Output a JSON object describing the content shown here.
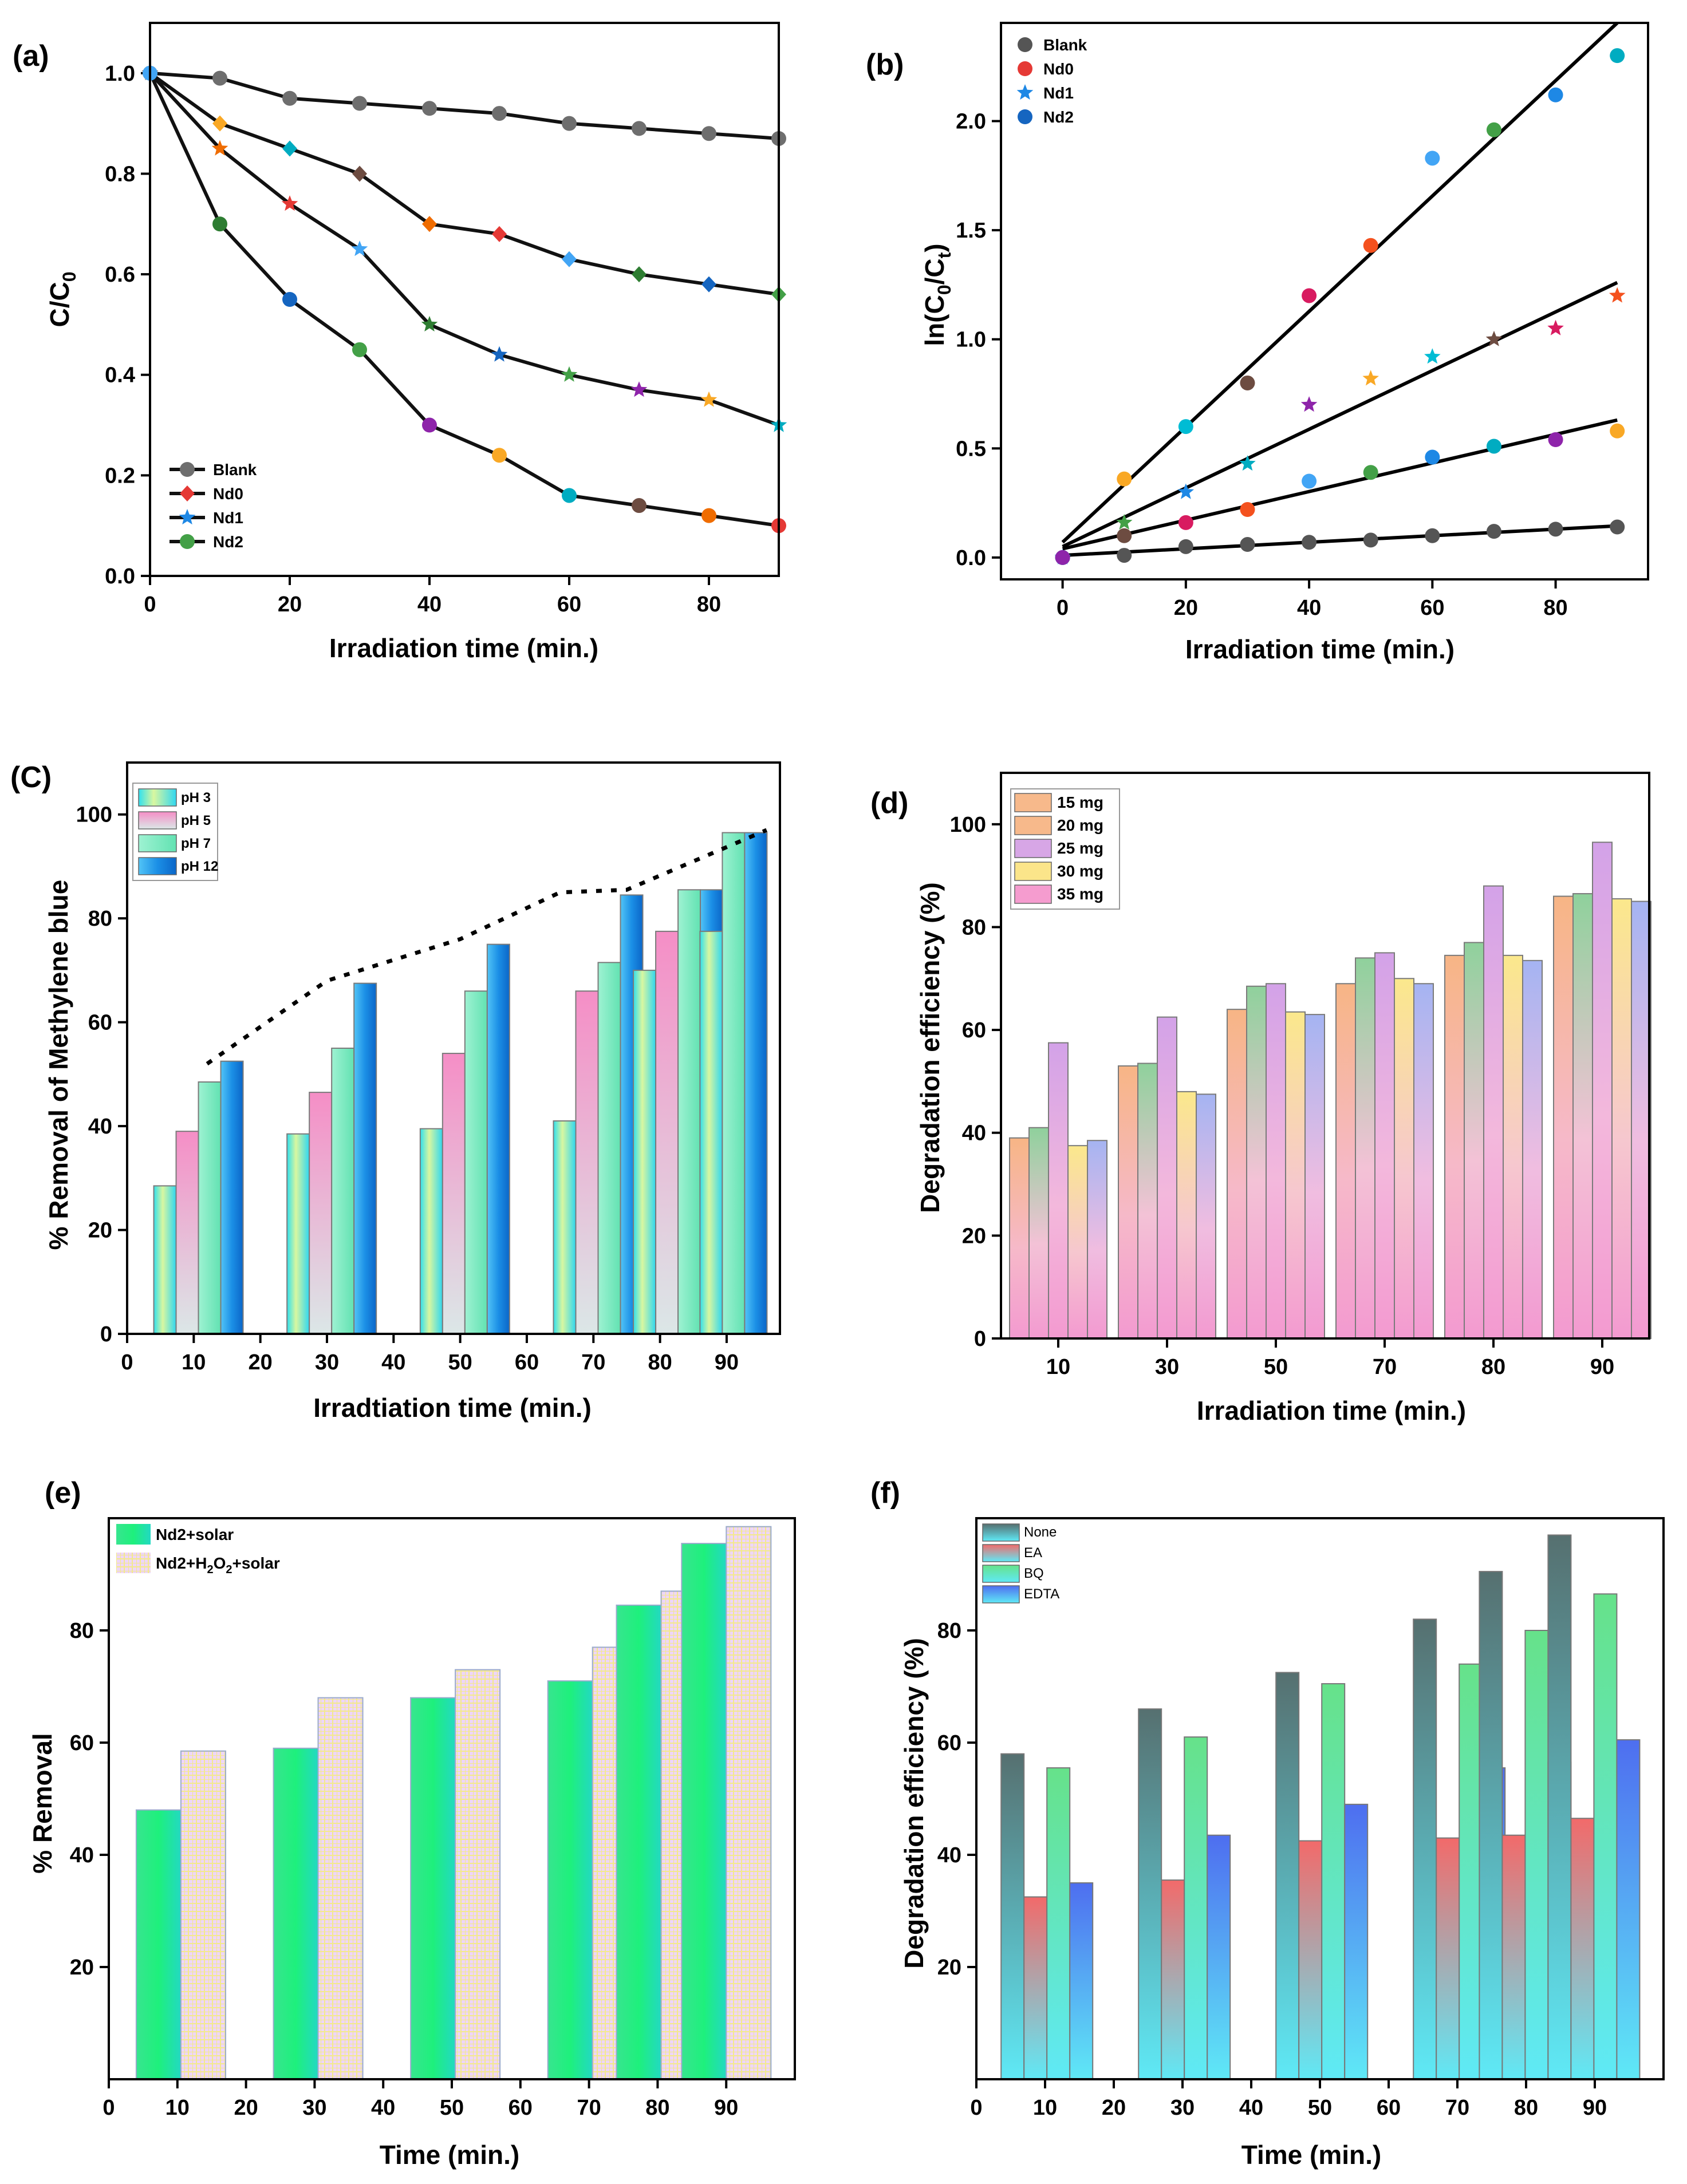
{
  "chart_data": [
    {
      "panel": "(a)",
      "type": "line",
      "title": "",
      "xlabel": "Irradiation time (min.)",
      "ylabel": "C/C0",
      "ylabel_main": "C/C",
      "ylabel_sub": "0",
      "xlim": [
        0,
        90
      ],
      "ylim": [
        0,
        1.1
      ],
      "xticks": [
        0,
        20,
        40,
        60,
        80
      ],
      "yticks": [
        0.0,
        0.2,
        0.4,
        0.6,
        0.8,
        1.0
      ],
      "xtick_labels": [
        "0",
        "20",
        "40",
        "60",
        "80"
      ],
      "ytick_labels": [
        "0.0",
        "0.2",
        "0.4",
        "0.6",
        "0.8",
        "1.0"
      ],
      "x": [
        0,
        10,
        20,
        30,
        40,
        50,
        60,
        70,
        80,
        90
      ],
      "series": [
        {
          "name": "Blank",
          "values": [
            1.0,
            0.99,
            0.95,
            0.94,
            0.93,
            0.92,
            0.9,
            0.89,
            0.88,
            0.87
          ]
        },
        {
          "name": "Nd0",
          "values": [
            1.0,
            0.9,
            0.85,
            0.8,
            0.7,
            0.68,
            0.63,
            0.6,
            0.58,
            0.56
          ]
        },
        {
          "name": "Nd1",
          "values": [
            1.0,
            0.85,
            0.74,
            0.65,
            0.5,
            0.44,
            0.4,
            0.37,
            0.35,
            0.3
          ]
        },
        {
          "name": "Nd2",
          "values": [
            1.0,
            0.7,
            0.55,
            0.45,
            0.3,
            0.24,
            0.16,
            0.14,
            0.12,
            0.1
          ]
        }
      ],
      "point_colors": [
        "#2e7d32",
        "#1565c0",
        "#43a047",
        "#8e24aa",
        "#f9a825",
        "#00acc1",
        "#6d4c41",
        "#ef6c00",
        "#e53935",
        "#42a5f5"
      ],
      "legend": [
        "Blank",
        "Nd0",
        "Nd1",
        "Nd2"
      ],
      "legend_position": "bottom-left"
    },
    {
      "panel": "(b)",
      "type": "scatter",
      "title": "",
      "xlabel": "Irradiation time (min.)",
      "ylabel": "ln(C0/Ct)",
      "ylabel_parts": [
        "ln(C",
        "0",
        "/C",
        "t",
        ")"
      ],
      "xlim": [
        -10,
        95
      ],
      "ylim": [
        -0.1,
        2.45
      ],
      "xticks": [
        0,
        20,
        40,
        60,
        80
      ],
      "yticks": [
        0.0,
        0.5,
        1.0,
        1.5,
        2.0
      ],
      "xtick_labels": [
        "0",
        "20",
        "40",
        "60",
        "80"
      ],
      "ytick_labels": [
        "0.0",
        "0.5",
        "1.0",
        "1.5",
        "2.0"
      ],
      "x": [
        0,
        10,
        20,
        30,
        40,
        50,
        60,
        70,
        80,
        90
      ],
      "series": [
        {
          "name": "Blank",
          "values": [
            0.0,
            0.01,
            0.05,
            0.06,
            0.07,
            0.08,
            0.1,
            0.12,
            0.13,
            0.14
          ],
          "fit": [
            0.01,
            0.145
          ]
        },
        {
          "name": "Nd0",
          "values": [
            0.0,
            0.1,
            0.16,
            0.22,
            0.35,
            0.39,
            0.46,
            0.51,
            0.54,
            0.58
          ],
          "fit": [
            0.04,
            0.63
          ]
        },
        {
          "name": "Nd1",
          "values": [
            0.0,
            0.16,
            0.3,
            0.43,
            0.7,
            0.82,
            0.92,
            1.0,
            1.05,
            1.2
          ],
          "fit": [
            0.05,
            1.26
          ]
        },
        {
          "name": "Nd2",
          "values": [
            0.0,
            0.36,
            0.6,
            0.8,
            1.2,
            1.43,
            1.83,
            1.96,
            2.12,
            2.3
          ],
          "fit": [
            0.07,
            2.45
          ]
        }
      ],
      "point_colors": [
        "#1e88e5",
        "#00acc1",
        "#8e24aa",
        "#f9a825",
        "#00bcd4",
        "#6d4c41",
        "#d81b60",
        "#f4511e",
        "#42a5f5",
        "#43a047"
      ],
      "legend": [
        "Blank",
        "Nd0",
        "Nd1",
        "Nd2"
      ],
      "legend_colors": [
        "#555555",
        "#e53935",
        "#1e88e5",
        "#1565c0"
      ],
      "legend_position": "top-left"
    },
    {
      "panel": "(C)",
      "type": "bar",
      "title": "",
      "xlabel": "Irradtiation time (min.)",
      "ylabel": "% Removal of Methylene blue",
      "xlim": [
        0,
        98
      ],
      "ylim": [
        0,
        110
      ],
      "xticks": [
        0,
        10,
        20,
        30,
        40,
        50,
        60,
        70,
        80,
        90
      ],
      "xtick_labels": [
        "0",
        "10",
        "20",
        "30",
        "40",
        "50",
        "60",
        "70",
        "80",
        "90"
      ],
      "yticks": [
        0,
        20,
        40,
        60,
        80,
        100
      ],
      "ytick_labels": [
        "0",
        "20",
        "40",
        "60",
        "80",
        "100"
      ],
      "categories": [
        10,
        30,
        50,
        70,
        80,
        90
      ],
      "series": [
        {
          "name": "pH 3",
          "values": [
            28.5,
            38.5,
            39.5,
            41.0,
            70.0,
            77.5
          ]
        },
        {
          "name": "pH 5",
          "values": [
            39.0,
            46.5,
            54.0,
            66.0,
            77.5,
            84.5
          ]
        },
        {
          "name": "pH 7",
          "values": [
            48.5,
            55.0,
            66.0,
            71.5,
            85.5,
            96.5
          ]
        },
        {
          "name": "pH 12",
          "values": [
            52.5,
            67.5,
            75.0,
            84.5,
            85.5,
            96.5
          ]
        }
      ],
      "colors": [
        "#3fe3f0",
        "#f59ccf",
        "#7fedbf",
        "#1aa0f0"
      ],
      "trend_line": {
        "x": [
          12,
          30,
          50,
          65,
          75,
          96
        ],
        "y": [
          52,
          68,
          76,
          85,
          85.5,
          97
        ]
      },
      "legend": [
        "pH 3",
        "pH 5",
        "pH 7",
        "pH 12"
      ],
      "legend_position": "top-left"
    },
    {
      "panel": "(d)",
      "type": "bar",
      "title": "",
      "xlabel": "Irradiation time (min.)",
      "ylabel": "Degradation efficiency (%)",
      "ylim": [
        0,
        110
      ],
      "yticks": [
        0,
        20,
        40,
        60,
        80,
        100
      ],
      "ytick_labels": [
        "0",
        "20",
        "40",
        "60",
        "80",
        "100"
      ],
      "categories": [
        "10",
        "30",
        "50",
        "70",
        "80",
        "90"
      ],
      "series": [
        {
          "name": "15 mg",
          "values": [
            39.0,
            53.0,
            64.0,
            69.0,
            74.5,
            86.0
          ]
        },
        {
          "name": "20 mg",
          "values": [
            41.0,
            53.5,
            68.5,
            74.0,
            77.0,
            86.5
          ]
        },
        {
          "name": "25 mg",
          "values": [
            57.5,
            62.5,
            69.0,
            75.0,
            88.0,
            96.5
          ]
        },
        {
          "name": "30 mg",
          "values": [
            37.5,
            48.0,
            63.5,
            70.0,
            74.5,
            85.5
          ]
        },
        {
          "name": "35 mg",
          "values": [
            38.5,
            47.5,
            63.0,
            69.0,
            73.5,
            85.0
          ]
        }
      ],
      "colors": [
        "#f7b98b",
        "#9fd7a4",
        "#d7a6e6",
        "#fbe58a",
        "#a8b4f0"
      ],
      "legend_colors": [
        "#f7b98b",
        "#f7b98b",
        "#d7a6e6",
        "#fbe58a",
        "#f59ccf"
      ],
      "legend": [
        "15 mg",
        "20 mg",
        "25 mg",
        "30 mg",
        "35 mg"
      ],
      "legend_position": "top-left"
    },
    {
      "panel": "(e)",
      "type": "bar",
      "title": "",
      "xlabel": "Time (min.)",
      "ylabel": "% Removal",
      "xlim": [
        0,
        100
      ],
      "ylim": [
        0,
        100
      ],
      "xticks": [
        0,
        10,
        20,
        30,
        40,
        50,
        60,
        70,
        80,
        90
      ],
      "xtick_labels": [
        "0",
        "10",
        "20",
        "30",
        "40",
        "50",
        "60",
        "70",
        "80",
        "90"
      ],
      "yticks": [
        20,
        40,
        60,
        80
      ],
      "ytick_labels": [
        "20",
        "40",
        "60",
        "80"
      ],
      "categories": [
        10,
        30,
        50,
        70,
        80,
        90
      ],
      "series": [
        {
          "name": "Nd2+solar",
          "values": [
            48.0,
            59.0,
            68.0,
            71.0,
            84.5,
            95.5
          ]
        },
        {
          "name": "Nd2+H2O2+solar",
          "values": [
            58.5,
            68.0,
            73.0,
            77.0,
            87.0,
            98.5
          ]
        }
      ],
      "legend": [
        "Nd2+solar",
        "Nd2+H2O2+solar"
      ],
      "legend_parts": [
        "Nd2+H",
        "2",
        "O",
        "2",
        "+solar"
      ],
      "colors": [
        "#2ee88a",
        "#e6c8f4"
      ],
      "legend_position": "top-left"
    },
    {
      "panel": "(f)",
      "type": "bar",
      "title": "",
      "xlabel": "Time (min.)",
      "ylabel": "Degradation efficiency (%)",
      "xlim": [
        0,
        100
      ],
      "ylim": [
        0,
        100
      ],
      "xticks": [
        0,
        10,
        20,
        30,
        40,
        50,
        60,
        70,
        80,
        90
      ],
      "xtick_labels": [
        "0",
        "10",
        "20",
        "30",
        "40",
        "50",
        "60",
        "70",
        "80",
        "90"
      ],
      "yticks": [
        20,
        40,
        60,
        80
      ],
      "ytick_labels": [
        "20",
        "40",
        "60",
        "80"
      ],
      "categories": [
        10,
        30,
        50,
        70,
        80,
        90
      ],
      "series": [
        {
          "name": "None",
          "values": [
            58.0,
            66.0,
            72.5,
            82.0,
            90.5,
            97.0
          ]
        },
        {
          "name": "EA",
          "values": [
            32.5,
            35.5,
            42.5,
            43.0,
            43.5,
            46.5
          ]
        },
        {
          "name": "BQ",
          "values": [
            55.5,
            61.0,
            70.5,
            74.0,
            80.0,
            86.5
          ]
        },
        {
          "name": "EDTA",
          "values": [
            35.0,
            43.5,
            49.0,
            55.5,
            56.5,
            60.5
          ]
        }
      ],
      "colors": [
        "#5d7b7b",
        "#f26d6d",
        "#6fe08a",
        "#4f7ff0"
      ],
      "legend": [
        "None",
        "EA",
        "BQ",
        "EDTA"
      ],
      "legend_position": "top-left"
    }
  ]
}
